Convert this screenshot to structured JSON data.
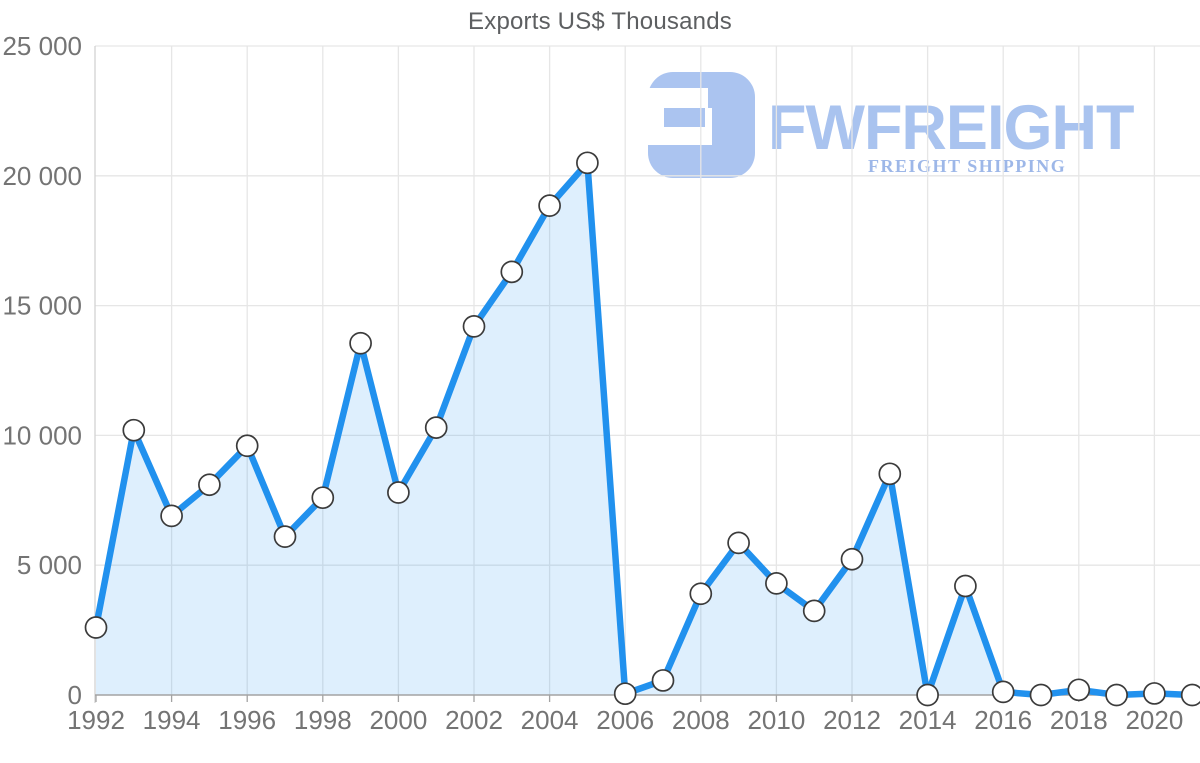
{
  "title": "Exports US$ Thousands",
  "logo": {
    "name": "FWFREIGHT",
    "tagline": "FREIGHT SHIPPING",
    "icon": "fwfreight-f-mark",
    "color_main": "#a9c3ef",
    "color_tagline": "#9db7e8",
    "color_icon": "#abc4f0"
  },
  "chart_data": {
    "type": "area",
    "title": "Exports US$ Thousands",
    "x": [
      1992,
      1993,
      1994,
      1995,
      1996,
      1997,
      1998,
      1999,
      2000,
      2001,
      2002,
      2003,
      2004,
      2005,
      2006,
      2007,
      2008,
      2009,
      2010,
      2011,
      2012,
      2013,
      2014,
      2015,
      2016,
      2017,
      2018,
      2019,
      2020,
      2021
    ],
    "values": [
      2600,
      10200,
      6900,
      8100,
      9600,
      6100,
      7600,
      13550,
      7800,
      10300,
      14200,
      16300,
      18850,
      20500,
      50,
      560,
      3900,
      5860,
      4300,
      3240,
      5230,
      8520,
      0,
      4200,
      120,
      0,
      200,
      0,
      60,
      0
    ],
    "unit": "US$ Thousands",
    "xlabel": "",
    "ylabel": "",
    "ylim": [
      0,
      25000
    ],
    "y_ticks": [
      0,
      5000,
      10000,
      15000,
      20000,
      25000
    ],
    "y_tick_labels": [
      "0",
      "5 000",
      "10 000",
      "15 000",
      "20 000",
      "25 000"
    ],
    "x_tick_labels": [
      "1992",
      "1994",
      "1996",
      "1998",
      "2000",
      "2002",
      "2004",
      "2006",
      "2008",
      "2010",
      "2012",
      "2014",
      "2016",
      "2018",
      "2020"
    ],
    "grid": true,
    "legend": "none",
    "marker": "circle",
    "colors": {
      "line": "#2191ee",
      "fill": "rgba(33,150,243,0.15)",
      "grid": "#e6e6e6",
      "axis": "#a3a3a3",
      "tick_label": "#747474",
      "marker_fill": "#ffffff",
      "marker_stroke": "#3b3b3b",
      "title": "#5d5f61"
    }
  }
}
